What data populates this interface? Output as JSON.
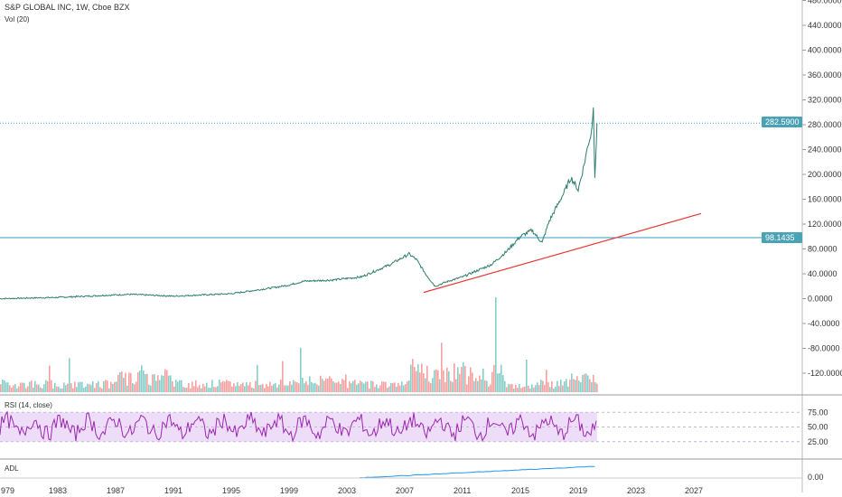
{
  "header": {
    "symbol_line": "S&P GLOBAL INC, 1W, Cboe BZX",
    "volume_line": "Vol (20)"
  },
  "rsi": {
    "label": "RSI (14, close)",
    "ticks": [
      "75.00",
      "50.00",
      "25.00"
    ]
  },
  "adl": {
    "label": "ADL",
    "ticks": [
      "0.00"
    ]
  },
  "price_tags": {
    "last": "282.5900",
    "level": "98.1435"
  },
  "colors": {
    "up": "#26a69a",
    "down": "#ef5350",
    "rsi": "#9c27b0",
    "rsi_band": "#e8d5f7",
    "trend": "#e53935",
    "hline": "#3a9ec7",
    "adl": "#2196f3"
  },
  "chart_data": {
    "type": "line",
    "title": "S&P GLOBAL INC, 1W, Cboe BZX",
    "xlabel": "",
    "ylabel": "",
    "x_tick_labels": [
      "979",
      "1983",
      "1987",
      "1991",
      "1995",
      "1999",
      "2003",
      "2007",
      "2011",
      "2015",
      "2019",
      "2023",
      "2027"
    ],
    "y_tick_labels": [
      "480.0000",
      "440.0000",
      "400.0000",
      "360.0000",
      "320.0000",
      "280.0000",
      "240.0000",
      "200.0000",
      "160.0000",
      "120.0000",
      "80.0000",
      "40.0000",
      "0.0000",
      "-40.0000",
      "-80.0000",
      "-120.0000"
    ],
    "ylim": [
      -145,
      485
    ],
    "series": [
      {
        "x": [
          1979,
          1983,
          1987,
          1988,
          1991,
          1995,
          1998,
          1999,
          2000,
          2002,
          2004,
          2006,
          2007.3,
          2007.8,
          2008.5,
          2009.1,
          2010,
          2011,
          2012,
          2013,
          2014,
          2015,
          2015.8,
          2016.5,
          2017,
          2018,
          2018.5,
          2019,
          2019.4,
          2019.7,
          2019.9,
          2020.05,
          2020.15,
          2020.3
        ],
        "values": [
          0,
          2,
          6,
          7,
          4,
          8,
          18,
          22,
          28,
          30,
          35,
          55,
          72,
          63,
          38,
          20,
          28,
          35,
          45,
          55,
          75,
          100,
          110,
          90,
          125,
          170,
          195,
          175,
          215,
          250,
          265,
          312,
          190,
          282
        ]
      }
    ],
    "horizontal_lines": [
      {
        "value": 282.59
      },
      {
        "value": 98.1435
      }
    ],
    "trendline": {
      "from": [
        2008.3,
        10
      ],
      "to": [
        2027.5,
        137
      ]
    },
    "volume": {
      "peak_year": 2013.2
    },
    "rsi_levels": [
      70,
      30
    ]
  }
}
